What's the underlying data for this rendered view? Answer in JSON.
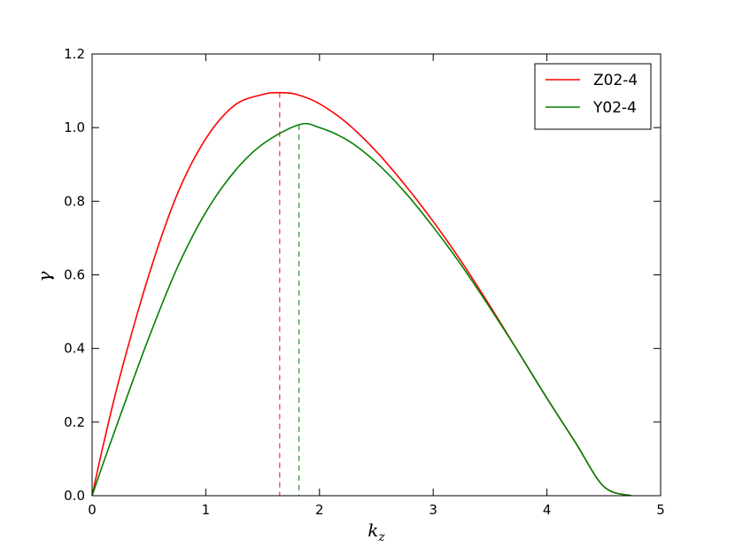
{
  "chart_data": {
    "type": "line",
    "title": "",
    "xlabel": "k",
    "xlabel_sub": "z",
    "ylabel": "γ",
    "xlim": [
      0,
      5
    ],
    "ylim": [
      0,
      1.2
    ],
    "xticks": [
      0,
      1,
      2,
      3,
      4,
      5
    ],
    "yticks": [
      0.0,
      0.2,
      0.4,
      0.6,
      0.8,
      1.0,
      1.2
    ],
    "xtick_labels": [
      "0",
      "1",
      "2",
      "3",
      "4",
      "5"
    ],
    "ytick_labels": [
      "0.0",
      "0.2",
      "0.4",
      "0.6",
      "0.8",
      "1.0",
      "1.2"
    ],
    "grid": false,
    "legend_position": "top-right",
    "series": [
      {
        "name": "Z02-4",
        "color": "#ff0000",
        "x": [
          0,
          0.1,
          0.25,
          0.5,
          0.75,
          1.0,
          1.25,
          1.5,
          1.65,
          1.8,
          2.0,
          2.25,
          2.5,
          2.75,
          3.0,
          3.25,
          3.5,
          3.75,
          4.0,
          4.25,
          4.5,
          4.74
        ],
        "y": [
          0,
          0.14,
          0.33,
          0.6,
          0.82,
          0.97,
          1.06,
          1.09,
          1.095,
          1.09,
          1.065,
          1.01,
          0.935,
          0.845,
          0.745,
          0.635,
          0.515,
          0.39,
          0.265,
          0.145,
          0.025,
          0.0
        ]
      },
      {
        "name": "Y02-4",
        "color": "#008000",
        "x": [
          0,
          0.1,
          0.25,
          0.5,
          0.75,
          1.0,
          1.25,
          1.5,
          1.82,
          2.0,
          2.25,
          2.5,
          2.75,
          3.0,
          3.25,
          3.5,
          3.75,
          4.0,
          4.25,
          4.5,
          4.74
        ],
        "y": [
          0,
          0.09,
          0.22,
          0.43,
          0.62,
          0.77,
          0.88,
          0.955,
          1.008,
          1.0,
          0.965,
          0.905,
          0.825,
          0.73,
          0.625,
          0.51,
          0.39,
          0.265,
          0.145,
          0.025,
          0.0
        ]
      }
    ],
    "markers": [
      {
        "series": "Z02-4",
        "x": 1.65,
        "y": 1.095,
        "color": "#ff0000",
        "style": "dashed"
      },
      {
        "series": "Y02-4",
        "x": 1.82,
        "y": 1.008,
        "color": "#008000",
        "style": "dashed"
      }
    ]
  }
}
